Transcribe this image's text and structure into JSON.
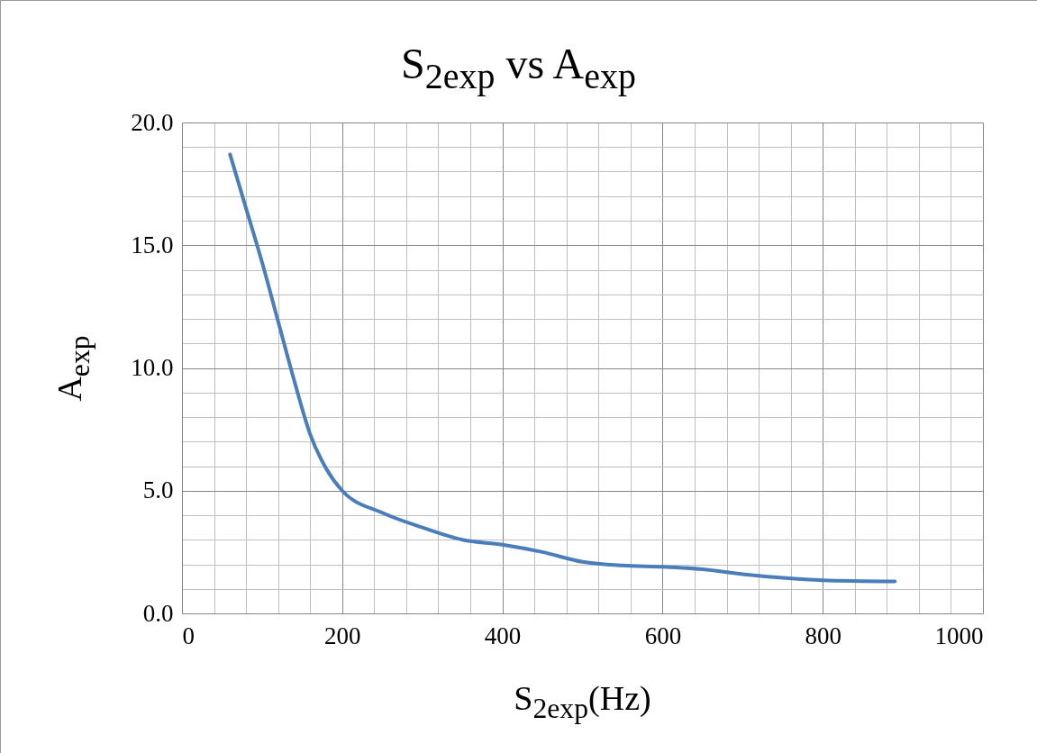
{
  "chart_data": {
    "type": "line",
    "title": "S$_{2exp}$ vs A$_{exp}$",
    "xlabel": "S$_{2exp}$(Hz)",
    "ylabel": "A$_{exp}$",
    "x": [
      60,
      80,
      100,
      120,
      140,
      160,
      180,
      200,
      250,
      300,
      350,
      400,
      450,
      500,
      550,
      600,
      650,
      700,
      750,
      800,
      890
    ],
    "series": [
      {
        "color": "#4a7ebb",
        "values": [
          18.7,
          16.5,
          14.3,
          11.9,
          9.5,
          7.3,
          5.9,
          5.0,
          4.1,
          3.5,
          3.0,
          2.8,
          2.5,
          2.1,
          1.95,
          1.9,
          1.8,
          1.6,
          1.45,
          1.35,
          1.3
        ]
      }
    ],
    "xlim": [
      0,
      1000
    ],
    "ylim": [
      0,
      20
    ],
    "xticks": [
      0,
      {
        "value": 40,
        "label": null
      },
      {
        "value": 80,
        "label": null
      },
      {
        "value": 120,
        "label": null
      },
      {
        "value": 160,
        "label": null
      },
      200,
      {
        "value": 240,
        "label": null
      },
      {
        "value": 280,
        "label": null
      },
      {
        "value": 320,
        "label": null
      },
      {
        "value": 360,
        "label": null
      },
      400,
      {
        "value": 440,
        "label": null
      },
      {
        "value": 480,
        "label": null
      },
      {
        "value": 520,
        "label": null
      },
      {
        "value": 560,
        "label": null
      },
      600,
      {
        "value": 640,
        "label": null
      },
      {
        "value": 680,
        "label": null
      },
      {
        "value": 720,
        "label": null
      },
      {
        "value": 760,
        "label": null
      },
      800,
      {
        "value": 840,
        "label": null
      },
      {
        "value": 880,
        "label": null
      },
      {
        "value": 920,
        "label": null
      },
      {
        "value": 960,
        "label": null
      },
      1000
    ],
    "yticks": [
      {
        "value": 0,
        "label": "0.0"
      },
      {
        "value": 1,
        "label": null
      },
      {
        "value": 2,
        "label": null
      },
      {
        "value": 3,
        "label": null
      },
      {
        "value": 4,
        "label": null
      },
      {
        "value": 5,
        "label": "5.0"
      },
      {
        "value": 6,
        "label": null
      },
      {
        "value": 7,
        "label": null
      },
      {
        "value": 8,
        "label": null
      },
      {
        "value": 9,
        "label": null
      },
      {
        "value": 10,
        "label": "10.0"
      },
      {
        "value": 11,
        "label": null
      },
      {
        "value": 12,
        "label": null
      },
      {
        "value": 13,
        "label": null
      },
      {
        "value": 14,
        "label": null
      },
      {
        "value": 15,
        "label": "15.0"
      },
      {
        "value": 16,
        "label": null
      },
      {
        "value": 17,
        "label": null
      },
      {
        "value": 18,
        "label": null
      },
      {
        "value": 19,
        "label": null
      },
      {
        "value": 20,
        "label": "20.0"
      }
    ],
    "grid": true
  }
}
